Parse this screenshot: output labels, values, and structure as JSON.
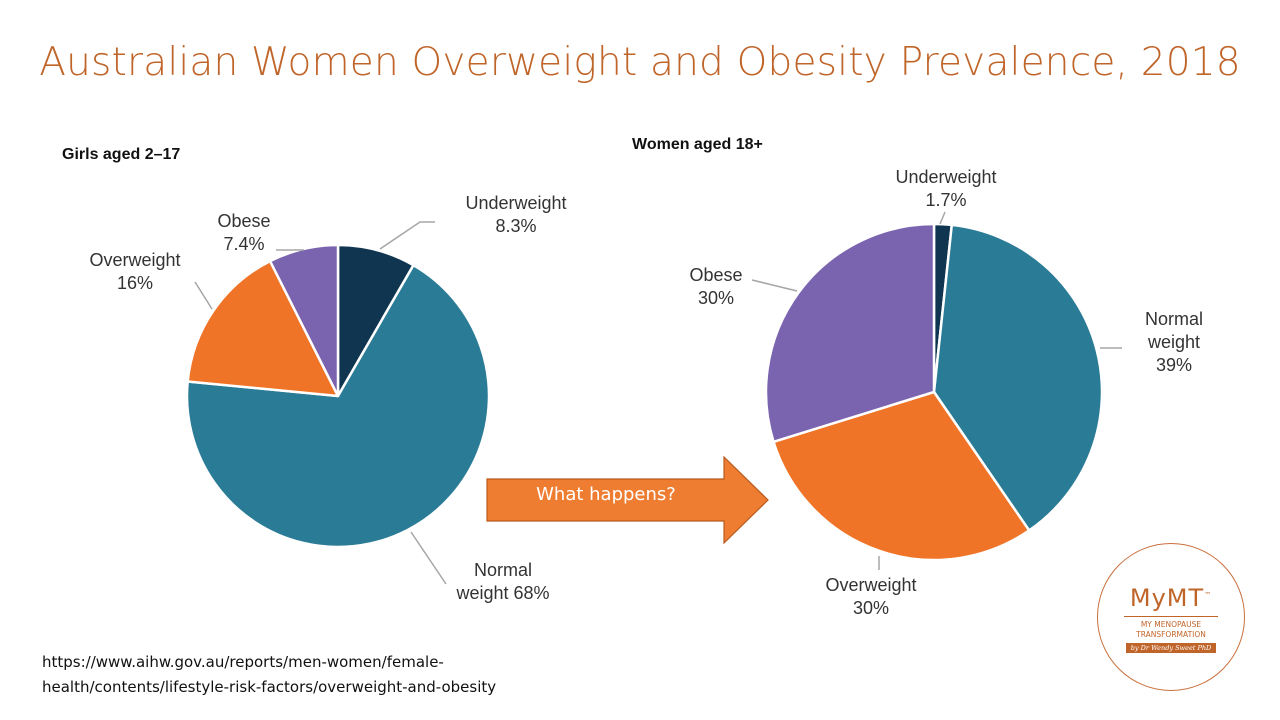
{
  "title": "Australian Women Overweight and Obesity Prevalence, 2018",
  "chart_data": [
    {
      "type": "pie",
      "title": "Girls aged 2–17",
      "slices": [
        {
          "category": "Underweight",
          "value": 8.3,
          "display": "8.3%",
          "color": "#0f3550"
        },
        {
          "category": "Normal weight",
          "value": 68,
          "display": "68%",
          "color": "#2a7b96"
        },
        {
          "category": "Overweight",
          "value": 16,
          "display": "16%",
          "color": "#f07427"
        },
        {
          "category": "Obese",
          "value": 7.4,
          "display": "7.4%",
          "color": "#7a63af"
        }
      ],
      "start_angle_deg": 0,
      "direction": "clockwise"
    },
    {
      "type": "pie",
      "title": "Women aged 18+",
      "slices": [
        {
          "category": "Underweight",
          "value": 1.7,
          "display": "1.7%",
          "color": "#0f3550"
        },
        {
          "category": "Normal weight",
          "value": 39,
          "display": "39%",
          "color": "#2a7b96"
        },
        {
          "category": "Overweight",
          "value": 30,
          "display": "30%",
          "color": "#f07427"
        },
        {
          "category": "Obese",
          "value": 30,
          "display": "30%",
          "color": "#7a63af"
        }
      ],
      "start_angle_deg": 0,
      "direction": "clockwise"
    }
  ],
  "arrow": {
    "text": "What happens?",
    "color": "#ee7d31"
  },
  "source": {
    "line1": "https://www.aihw.gov.au/reports/men-women/female-",
    "line2": "health/contents/lifestyle-risk-factors/overweight-and-obesity"
  },
  "logo": {
    "main": "MyMT",
    "tm": "™",
    "sub1": "MY MENOPAUSE",
    "sub2": "TRANSFORMATION",
    "band": "by Dr Wendy Sweet PhD",
    "color": "#c0652a"
  }
}
